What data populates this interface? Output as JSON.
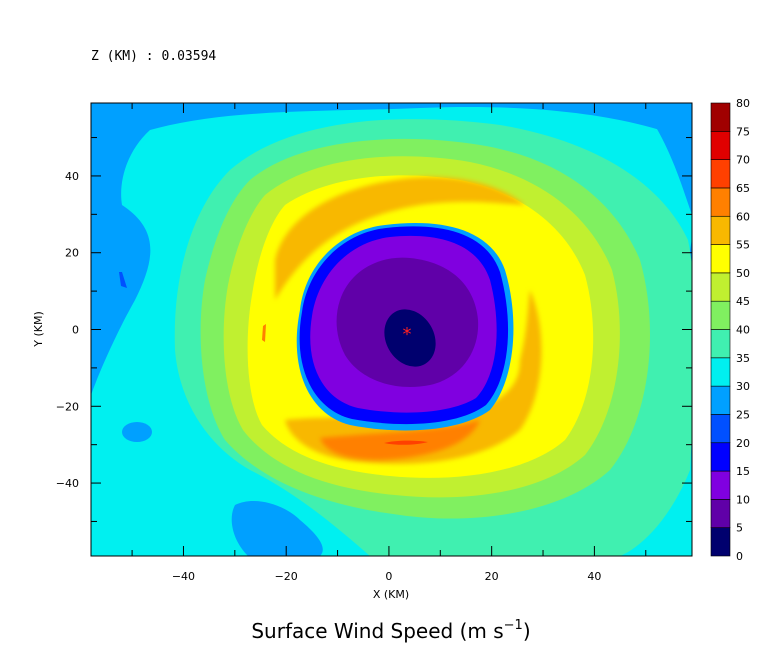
{
  "header": {
    "z_label": "Z (KM) : 0.03594"
  },
  "chart_data": {
    "type": "heatmap",
    "title": "Surface Wind Speed (m s",
    "title_sup": "−1",
    "title_close": ")",
    "xlabel": "X (KM)",
    "ylabel": "Y (KM)",
    "xlim": [
      -58,
      59
    ],
    "ylim": [
      -59,
      59
    ],
    "x_ticks": [
      "−40",
      "−20",
      "0",
      "20",
      "40"
    ],
    "x_tick_values": [
      -40,
      -20,
      0,
      20,
      40
    ],
    "y_ticks": [
      "40",
      "20",
      "0",
      "−20",
      "−40"
    ],
    "y_tick_values": [
      40,
      20,
      0,
      -20,
      -40
    ],
    "colorbar": {
      "levels": [
        "0",
        "5",
        "10",
        "15",
        "20",
        "25",
        "30",
        "35",
        "40",
        "45",
        "50",
        "55",
        "60",
        "65",
        "70",
        "75",
        "80"
      ],
      "colors": [
        "#00006e",
        "#6000a8",
        "#8000e0",
        "#0000ff",
        "#0050ff",
        "#00a0ff",
        "#00f0f0",
        "#40f0b0",
        "#80f060",
        "#c0f030",
        "#ffff00",
        "#f8b800",
        "#ff8000",
        "#ff4000",
        "#e00000",
        "#a00000"
      ]
    },
    "storm_center": {
      "x": 3,
      "y": 1,
      "marker": "*"
    },
    "fields": {
      "background_speed_ms": 32,
      "eye_speed_ms": 3,
      "eyewall_peak_speed_ms": 57,
      "southern_max_speed_ms": 62
    }
  }
}
